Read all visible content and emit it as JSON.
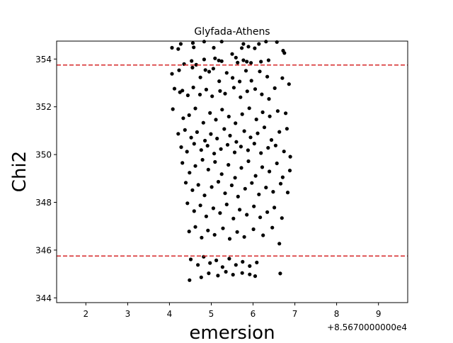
{
  "chart_data": {
    "type": "scatter",
    "title": "Glyfada-Athens",
    "xlabel": "emersion",
    "ylabel": "Chi2",
    "x_offset_text": "+8.5670000000e4",
    "xlim": [
      1.3,
      9.7
    ],
    "ylim": [
      343.8,
      354.75
    ],
    "x_ticks": [
      2,
      3,
      4,
      5,
      6,
      7,
      8,
      9
    ],
    "x_tick_labels": [
      "2",
      "3",
      "4",
      "5",
      "6",
      "7",
      "8",
      "9"
    ],
    "y_ticks": [
      344,
      346,
      348,
      350,
      352,
      354
    ],
    "y_tick_labels": [
      "344",
      "346",
      "348",
      "350",
      "352",
      "354"
    ],
    "hlines": [
      353.75,
      345.75
    ],
    "hline_color": "#d62728",
    "point_color": "#000000",
    "grid": false,
    "points": [
      [
        4.06,
        354.47
      ],
      [
        4.21,
        354.42
      ],
      [
        4.27,
        354.63
      ],
      [
        4.56,
        354.67
      ],
      [
        4.58,
        354.49
      ],
      [
        4.83,
        354.73
      ],
      [
        5.06,
        354.47
      ],
      [
        5.25,
        354.73
      ],
      [
        5.73,
        354.46
      ],
      [
        5.77,
        354.63
      ],
      [
        5.89,
        354.52
      ],
      [
        6.04,
        354.45
      ],
      [
        6.14,
        354.63
      ],
      [
        6.31,
        354.73
      ],
      [
        6.57,
        354.71
      ],
      [
        6.72,
        354.35
      ],
      [
        6.75,
        354.25
      ],
      [
        4.35,
        353.79
      ],
      [
        4.53,
        353.92
      ],
      [
        4.64,
        353.76
      ],
      [
        4.83,
        353.98
      ],
      [
        5.09,
        354.03
      ],
      [
        5.18,
        353.94
      ],
      [
        5.25,
        353.91
      ],
      [
        5.5,
        354.21
      ],
      [
        5.59,
        354.06
      ],
      [
        5.63,
        353.85
      ],
      [
        5.77,
        353.95
      ],
      [
        5.85,
        353.89
      ],
      [
        5.95,
        353.84
      ],
      [
        6.19,
        353.89
      ],
      [
        6.37,
        353.95
      ],
      [
        4.06,
        353.38
      ],
      [
        4.23,
        353.53
      ],
      [
        4.55,
        353.64
      ],
      [
        4.74,
        353.23
      ],
      [
        4.86,
        353.54
      ],
      [
        4.95,
        353.47
      ],
      [
        5.05,
        353.6
      ],
      [
        5.19,
        353.07
      ],
      [
        5.37,
        353.42
      ],
      [
        5.51,
        353.21
      ],
      [
        5.68,
        353.06
      ],
      [
        5.83,
        353.51
      ],
      [
        5.96,
        353.09
      ],
      [
        6.16,
        353.48
      ],
      [
        6.34,
        353.26
      ],
      [
        6.7,
        353.2
      ],
      [
        6.86,
        352.95
      ],
      [
        4.12,
        352.76
      ],
      [
        4.25,
        352.61
      ],
      [
        4.31,
        352.68
      ],
      [
        4.44,
        352.48
      ],
      [
        4.57,
        352.81
      ],
      [
        4.73,
        352.51
      ],
      [
        4.88,
        352.72
      ],
      [
        5.02,
        352.44
      ],
      [
        5.21,
        352.66
      ],
      [
        5.33,
        352.55
      ],
      [
        5.54,
        352.8
      ],
      [
        5.7,
        352.4
      ],
      [
        5.86,
        352.65
      ],
      [
        6.05,
        352.74
      ],
      [
        6.21,
        352.52
      ],
      [
        6.38,
        352.33
      ],
      [
        6.52,
        352.78
      ],
      [
        4.08,
        351.9
      ],
      [
        4.33,
        351.52
      ],
      [
        4.47,
        351.65
      ],
      [
        4.62,
        351.93
      ],
      [
        4.81,
        351.33
      ],
      [
        4.97,
        351.74
      ],
      [
        5.11,
        351.46
      ],
      [
        5.26,
        351.88
      ],
      [
        5.42,
        351.59
      ],
      [
        5.58,
        351.31
      ],
      [
        5.74,
        351.69
      ],
      [
        5.91,
        351.94
      ],
      [
        6.08,
        351.47
      ],
      [
        6.23,
        351.77
      ],
      [
        6.4,
        351.6
      ],
      [
        6.59,
        351.82
      ],
      [
        6.78,
        351.73
      ],
      [
        4.21,
        350.87
      ],
      [
        4.37,
        351.03
      ],
      [
        4.52,
        350.71
      ],
      [
        4.66,
        350.94
      ],
      [
        4.85,
        350.58
      ],
      [
        4.99,
        350.86
      ],
      [
        5.14,
        350.67
      ],
      [
        5.31,
        351.07
      ],
      [
        5.45,
        350.79
      ],
      [
        5.6,
        350.53
      ],
      [
        5.79,
        350.98
      ],
      [
        5.94,
        350.72
      ],
      [
        6.11,
        350.89
      ],
      [
        6.27,
        351.14
      ],
      [
        6.44,
        350.61
      ],
      [
        6.63,
        350.95
      ],
      [
        6.81,
        351.08
      ],
      [
        4.28,
        350.31
      ],
      [
        4.42,
        350.12
      ],
      [
        4.59,
        350.45
      ],
      [
        4.76,
        350.19
      ],
      [
        4.91,
        350.37
      ],
      [
        5.07,
        350.04
      ],
      [
        5.23,
        350.23
      ],
      [
        5.39,
        350.41
      ],
      [
        5.56,
        350.09
      ],
      [
        5.71,
        350.33
      ],
      [
        5.88,
        350.18
      ],
      [
        6.03,
        350.46
      ],
      [
        6.19,
        350.06
      ],
      [
        6.36,
        350.28
      ],
      [
        6.54,
        350.38
      ],
      [
        6.74,
        350.13
      ],
      [
        6.89,
        349.91
      ],
      [
        4.31,
        349.65
      ],
      [
        4.48,
        349.24
      ],
      [
        4.62,
        349.52
      ],
      [
        4.79,
        349.78
      ],
      [
        4.93,
        349.37
      ],
      [
        5.09,
        349.69
      ],
      [
        5.25,
        349.18
      ],
      [
        5.41,
        349.57
      ],
      [
        5.57,
        349.03
      ],
      [
        5.72,
        349.44
      ],
      [
        5.89,
        349.72
      ],
      [
        6.06,
        349.11
      ],
      [
        6.22,
        349.47
      ],
      [
        6.39,
        349.29
      ],
      [
        6.57,
        349.63
      ],
      [
        6.71,
        349.05
      ],
      [
        6.88,
        349.33
      ],
      [
        4.39,
        348.82
      ],
      [
        4.55,
        348.51
      ],
      [
        4.69,
        348.73
      ],
      [
        4.84,
        348.29
      ],
      [
        5.01,
        348.64
      ],
      [
        5.17,
        348.86
      ],
      [
        5.33,
        348.38
      ],
      [
        5.49,
        348.71
      ],
      [
        5.64,
        348.24
      ],
      [
        5.81,
        348.57
      ],
      [
        5.97,
        348.81
      ],
      [
        6.14,
        348.33
      ],
      [
        6.31,
        348.62
      ],
      [
        6.48,
        348.44
      ],
      [
        6.66,
        348.78
      ],
      [
        6.83,
        348.41
      ],
      [
        4.43,
        347.96
      ],
      [
        4.59,
        347.63
      ],
      [
        4.74,
        347.87
      ],
      [
        4.88,
        347.41
      ],
      [
        5.05,
        347.75
      ],
      [
        5.21,
        347.55
      ],
      [
        5.37,
        347.91
      ],
      [
        5.53,
        347.32
      ],
      [
        5.68,
        347.69
      ],
      [
        5.85,
        347.48
      ],
      [
        6.02,
        347.83
      ],
      [
        6.17,
        347.37
      ],
      [
        6.34,
        347.59
      ],
      [
        6.51,
        347.78
      ],
      [
        6.69,
        347.34
      ],
      [
        4.47,
        346.78
      ],
      [
        4.62,
        346.97
      ],
      [
        4.77,
        346.52
      ],
      [
        4.92,
        346.82
      ],
      [
        5.08,
        346.64
      ],
      [
        5.28,
        346.91
      ],
      [
        5.44,
        346.47
      ],
      [
        5.62,
        346.76
      ],
      [
        5.79,
        346.55
      ],
      [
        6.01,
        346.87
      ],
      [
        6.24,
        346.62
      ],
      [
        6.46,
        346.94
      ],
      [
        6.63,
        346.27
      ],
      [
        4.51,
        345.61
      ],
      [
        4.68,
        345.38
      ],
      [
        4.82,
        345.72
      ],
      [
        4.97,
        345.46
      ],
      [
        5.12,
        345.57
      ],
      [
        5.27,
        345.29
      ],
      [
        5.43,
        345.64
      ],
      [
        5.59,
        345.38
      ],
      [
        5.75,
        345.51
      ],
      [
        5.92,
        345.33
      ],
      [
        6.09,
        345.48
      ],
      [
        4.48,
        344.74
      ],
      [
        4.76,
        344.86
      ],
      [
        4.94,
        345.03
      ],
      [
        5.16,
        344.93
      ],
      [
        5.35,
        345.09
      ],
      [
        5.52,
        344.97
      ],
      [
        5.74,
        345.04
      ],
      [
        5.92,
        344.98
      ],
      [
        6.05,
        344.91
      ],
      [
        6.65,
        345.02
      ]
    ]
  }
}
